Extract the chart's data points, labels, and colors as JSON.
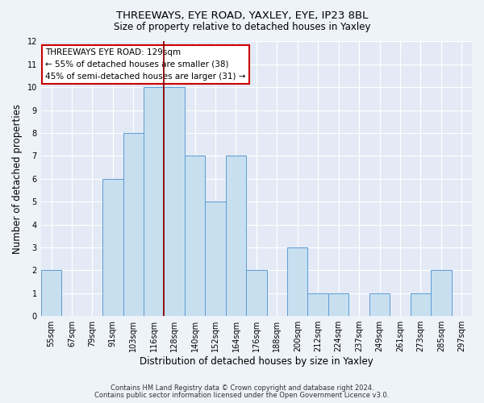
{
  "title": "THREEWAYS, EYE ROAD, YAXLEY, EYE, IP23 8BL",
  "subtitle": "Size of property relative to detached houses in Yaxley",
  "xlabel": "Distribution of detached houses by size in Yaxley",
  "ylabel": "Number of detached properties",
  "footnote1": "Contains HM Land Registry data © Crown copyright and database right 2024.",
  "footnote2": "Contains public sector information licensed under the Open Government Licence v3.0.",
  "bin_labels": [
    "55sqm",
    "67sqm",
    "79sqm",
    "91sqm",
    "103sqm",
    "116sqm",
    "128sqm",
    "140sqm",
    "152sqm",
    "164sqm",
    "176sqm",
    "188sqm",
    "200sqm",
    "212sqm",
    "224sqm",
    "237sqm",
    "249sqm",
    "261sqm",
    "273sqm",
    "285sqm",
    "297sqm"
  ],
  "bar_heights": [
    2,
    0,
    0,
    6,
    8,
    10,
    10,
    7,
    5,
    7,
    2,
    0,
    3,
    1,
    1,
    0,
    1,
    0,
    1,
    2,
    0
  ],
  "bar_color": "#c8dff0",
  "bar_edge_color": "#5b9bd5",
  "highlight_line_color": "#8b0000",
  "annotation_title": "THREEWAYS EYE ROAD: 129sqm",
  "annotation_line1": "← 55% of detached houses are smaller (38)",
  "annotation_line2": "45% of semi-detached houses are larger (31) →",
  "annotation_box_color": "#ffffff",
  "annotation_box_edge_color": "#cc0000",
  "ylim": [
    0,
    12
  ],
  "yticks": [
    0,
    1,
    2,
    3,
    4,
    5,
    6,
    7,
    8,
    9,
    10,
    11,
    12
  ],
  "background_color": "#eef2f9",
  "plot_background_color": "#e4eaf5"
}
